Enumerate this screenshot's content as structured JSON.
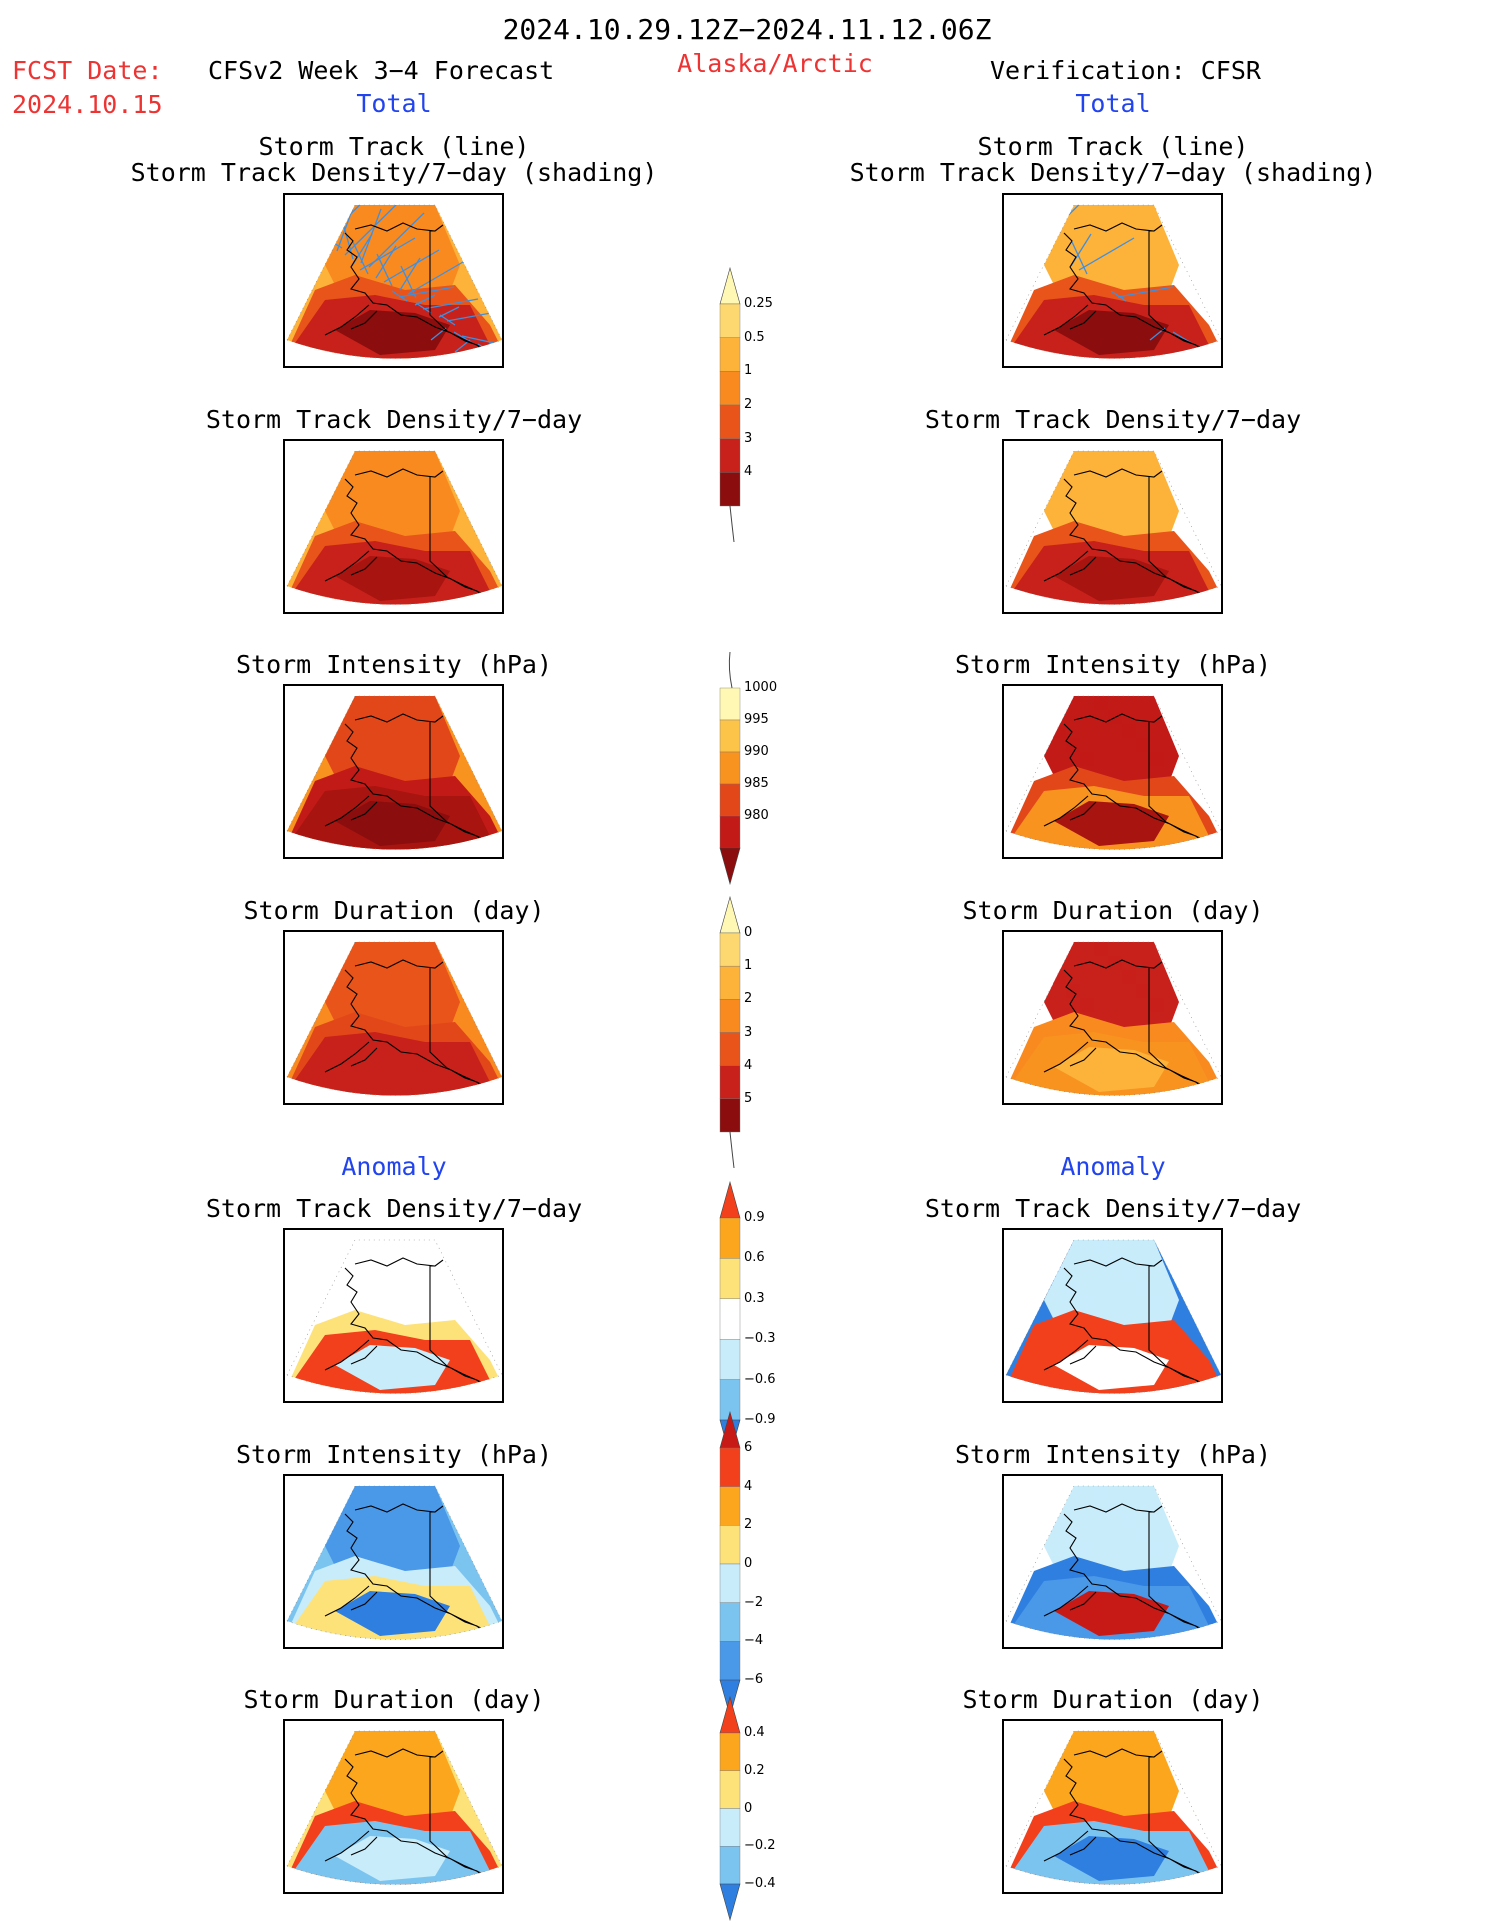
{
  "header": {
    "date_range": "2024.10.29.12Z−2024.11.12.06Z",
    "fcst_label": "FCST Date:",
    "fcst_date": "2024.10.15",
    "model_title": "CFSv2 Week 3−4 Forecast",
    "region": "Alaska/Arctic",
    "verification": "Verification: CFSR"
  },
  "sections": {
    "total_label": "Total",
    "anomaly_label": "Anomaly"
  },
  "panel_titles": {
    "track_line": "Storm Track (line)",
    "track_shading": "Storm Track Density/7−day (shading)",
    "density": "Storm Track Density/7−day",
    "intensity": "Storm Intensity (hPa)",
    "duration": "Storm Duration (day)"
  },
  "colorbars": {
    "density_total": {
      "labels": [
        "0.25",
        "0.5",
        "1",
        "2",
        "3",
        "4"
      ],
      "colors": [
        "#fff8b4",
        "#fdd870",
        "#fdb23a",
        "#f98a1f",
        "#e8541a",
        "#c8201b",
        "#8b0d0d"
      ]
    },
    "intensity_total": {
      "labels": [
        "1000",
        "995",
        "990",
        "985",
        "980"
      ],
      "colors": [
        "#fff8b4",
        "#fdc44a",
        "#f7931e",
        "#e2471a",
        "#c21a17",
        "#8b0d0d"
      ]
    },
    "duration_total": {
      "labels": [
        "0",
        "1",
        "2",
        "3",
        "4",
        "5"
      ],
      "colors": [
        "#fff8b4",
        "#fdd870",
        "#fdb23a",
        "#f98a1f",
        "#e8541a",
        "#c8201b",
        "#8b0d0d"
      ]
    },
    "density_anom": {
      "labels": [
        "0.9",
        "0.6",
        "0.3",
        "−0.3",
        "−0.6",
        "−0.9"
      ],
      "colors": [
        "#f2401c",
        "#fca61e",
        "#fde27a",
        "#ffffff",
        "#c8ecfa",
        "#7cc4f0",
        "#2f7fe0"
      ]
    },
    "intensity_anom": {
      "labels": [
        "6",
        "4",
        "2",
        "0",
        "−2",
        "−4",
        "−6"
      ],
      "colors": [
        "#c71a17",
        "#f2401c",
        "#fca61e",
        "#fde27a",
        "#c8ecfa",
        "#7cc4f0",
        "#4a98e8",
        "#2f7fe0"
      ]
    },
    "duration_anom": {
      "labels": [
        "0.4",
        "0.2",
        "0",
        "−0.2",
        "−0.4"
      ],
      "colors": [
        "#f2401c",
        "#fca61e",
        "#fde27a",
        "#c8ecfa",
        "#7cc4f0",
        "#2f7fe0"
      ]
    }
  },
  "map_layers": {
    "fc_track": [
      "#fdb23a",
      "#f98a1f",
      "#e8541a",
      "#c8201b",
      "#8b0d0d"
    ],
    "fc_density": [
      "#fdb23a",
      "#f98a1f",
      "#e8541a",
      "#c8201b",
      "#a8140f"
    ],
    "fc_intensity": [
      "#f7931e",
      "#e2471a",
      "#c21a17",
      "#a8140f",
      "#8b0d0d"
    ],
    "fc_duration": [
      "#f98a1f",
      "#e8541a",
      "#e2471a",
      "#c8201b",
      "#c8201b"
    ],
    "fc_anom_density": [
      "#ffffff",
      "#ffffff",
      "#fde27a",
      "#f2401c",
      "#c8ecfa"
    ],
    "fc_anom_intensity": [
      "#7cc4f0",
      "#4a98e8",
      "#c8ecfa",
      "#fde27a",
      "#2f7fe0"
    ],
    "fc_anom_duration": [
      "#fde27a",
      "#fca61e",
      "#f2401c",
      "#7cc4f0",
      "#c8ecfa"
    ],
    "vr_track": [
      "#ffffff",
      "#fdb23a",
      "#e8541a",
      "#c8201b",
      "#8b0d0d"
    ],
    "vr_density": [
      "#ffffff",
      "#fdb23a",
      "#e8541a",
      "#c8201b",
      "#a8140f"
    ],
    "vr_intensity": [
      "#ffffff",
      "#c21a17",
      "#e2471a",
      "#f7931e",
      "#a8140f"
    ],
    "vr_duration": [
      "#ffffff",
      "#c8201b",
      "#f98a1f",
      "#f7931e",
      "#fdb23a"
    ],
    "vr_anom_density": [
      "#2f7fe0",
      "#c8ecfa",
      "#f2401c",
      "#f2401c",
      "#ffffff"
    ],
    "vr_anom_intensity": [
      "#ffffff",
      "#c8ecfa",
      "#2f7fe0",
      "#4a98e8",
      "#c71a17"
    ],
    "vr_anom_duration": [
      "#ffffff",
      "#fca61e",
      "#f2401c",
      "#7cc4f0",
      "#2f7fe0"
    ]
  }
}
